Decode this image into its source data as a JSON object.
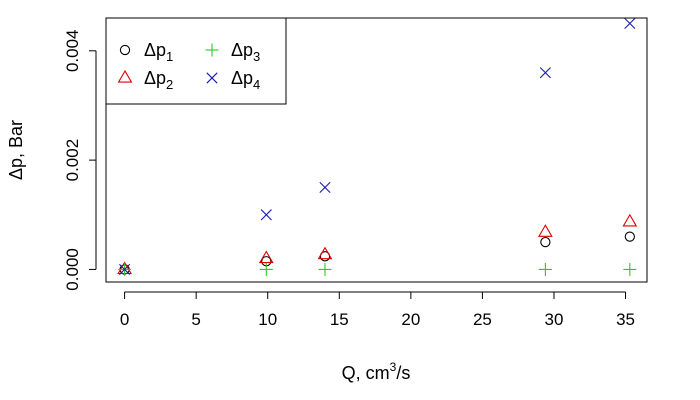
{
  "chart_data": {
    "type": "scatter",
    "title": "",
    "xlabel": "Q, cm",
    "xlabel_superscript": "3",
    "xlabel_suffix": "/s",
    "ylabel": "Δp, Bar",
    "xlim": [
      -1.3,
      36.5
    ],
    "ylim": [
      -0.00023,
      0.0046
    ],
    "x_ticks": [
      0,
      5,
      10,
      15,
      20,
      25,
      30,
      35
    ],
    "x_tick_labels": [
      "0",
      "5",
      "10",
      "15",
      "20",
      "25",
      "30",
      "35"
    ],
    "y_ticks": [
      0.0,
      0.002,
      0.004
    ],
    "y_tick_labels": [
      "0.000",
      "0.002",
      "0.004"
    ],
    "grid": false,
    "legend_position": "top-left",
    "series": [
      {
        "name": "Δp",
        "subscript": "1",
        "marker": "circle",
        "color": "#000000",
        "points": [
          [
            0,
            0.0
          ],
          [
            9.9,
            0.00015
          ],
          [
            14.0,
            0.00024
          ],
          [
            29.4,
            0.0005
          ],
          [
            35.3,
            0.0006
          ]
        ]
      },
      {
        "name": "Δp",
        "subscript": "2",
        "marker": "triangle",
        "color": "#DF0000",
        "points": [
          [
            0,
            0.0
          ],
          [
            9.9,
            0.0002
          ],
          [
            14.0,
            0.00027
          ],
          [
            29.4,
            0.00068
          ],
          [
            35.3,
            0.00087
          ]
        ]
      },
      {
        "name": "Δp",
        "subscript": "3",
        "marker": "plus",
        "color": "#22CC22",
        "points": [
          [
            0,
            0.0
          ],
          [
            9.9,
            0.0
          ],
          [
            14.0,
            0.0
          ],
          [
            29.4,
            0.0
          ],
          [
            35.3,
            0.0
          ]
        ]
      },
      {
        "name": "Δp",
        "subscript": "4",
        "marker": "x",
        "color": "#1A1AB5",
        "points": [
          [
            0,
            0.0
          ],
          [
            9.9,
            0.001
          ],
          [
            14.0,
            0.0015
          ],
          [
            29.4,
            0.0036
          ],
          [
            35.3,
            0.0045
          ]
        ]
      }
    ]
  }
}
